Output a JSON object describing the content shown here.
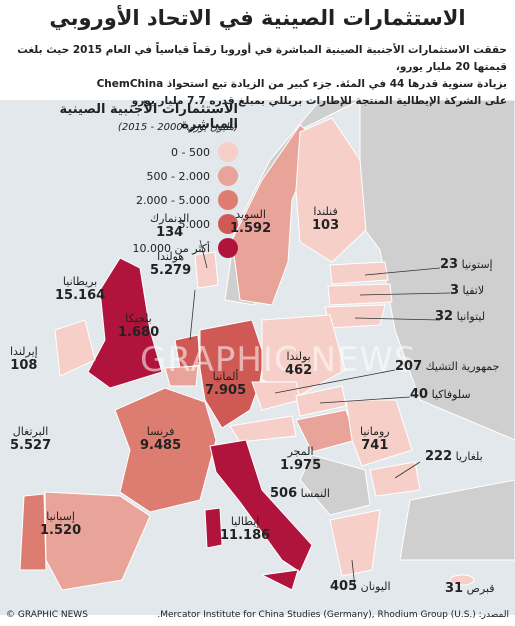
{
  "title": "الاستثمارات الصينية في الاتحاد الأوروبي",
  "intro": [
    "حققت الاستثمارات الأجنبية الصينية المباشرة في أوروبا رقماً قياسياً في العام 2015 حيث بلغت قيمتها 20 مليار يورو،",
    "بزيادة سنوية قدرها 44 في المئة. جزء كبير من الزيادة تبع استحواذ ChemChina",
    "على الشركة الإيطالية المنتجة للإطارات بريللي بمبلغ قدره 7.7 مليار يورو"
  ],
  "legend": {
    "title": "الاستثمارات الأجنبية الصينية المباشرة",
    "subtitle": "(مليون يورو، 2000 - 2015)",
    "items": [
      {
        "label": "500 - 0",
        "color": "#f5cfc8"
      },
      {
        "label": "2.000 - 500",
        "color": "#e9a49a"
      },
      {
        "label": "5.000 - 2.000",
        "color": "#dd7c70"
      },
      {
        "label": "5.000",
        "color": "#cf5a55"
      },
      {
        "label": "أكثر من 10.000",
        "color": "#b0143c"
      }
    ]
  },
  "countries": [
    {
      "name": "فنلندا",
      "value": "103"
    },
    {
      "name": "السويد",
      "value": "1.592"
    },
    {
      "name": "الدنمارك",
      "value": "134"
    },
    {
      "name": "إستونيا",
      "value": "23"
    },
    {
      "name": "لاتفيا",
      "value": "3"
    },
    {
      "name": "ليتوانيا",
      "value": "32"
    },
    {
      "name": "هولندا",
      "value": "5.279"
    },
    {
      "name": "بريطانيا",
      "value": "15.164"
    },
    {
      "name": "بلجيكا",
      "value": "1.680"
    },
    {
      "name": "بولندا",
      "value": "462"
    },
    {
      "name": "جمهورية التشيك",
      "value": "207"
    },
    {
      "name": "سلوفاكيا",
      "value": "40"
    },
    {
      "name": "إيرلندا",
      "value": "108"
    },
    {
      "name": "ألمانيا",
      "value": "7.905"
    },
    {
      "name": "فرنسا",
      "value": "9.485"
    },
    {
      "name": "رومانيا",
      "value": "741"
    },
    {
      "name": "بلغاريا",
      "value": "222"
    },
    {
      "name": "المجر",
      "value": "1.975"
    },
    {
      "name": "النمسا",
      "value": "506"
    },
    {
      "name": "البرتغال",
      "value": "5.527"
    },
    {
      "name": "إسبانيا",
      "value": "1.520"
    },
    {
      "name": "إيطاليا",
      "value": "11.186"
    },
    {
      "name": "اليونان",
      "value": "405"
    },
    {
      "name": "قبرص",
      "value": "31"
    }
  ],
  "watermark": "GRAPHIC NEWS",
  "source": "المصدر: Mercator Institute for China Studies (Germany), Rhodium Group (U.S.).",
  "credit": "© GRAPHIC NEWS"
}
